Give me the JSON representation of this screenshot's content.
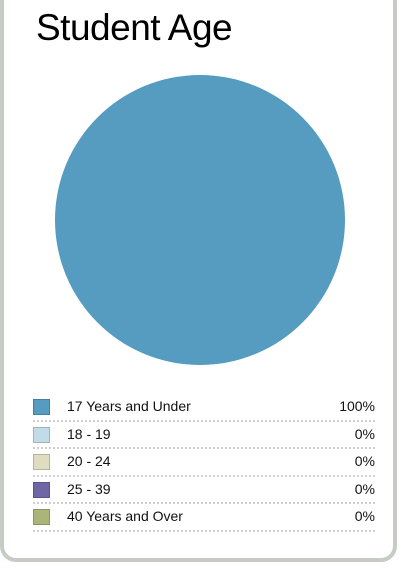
{
  "chart_data": {
    "type": "pie",
    "title": "Student Age",
    "legend_position": "bottom",
    "slices": [
      {
        "label": "17 Years and Under",
        "value": 100,
        "display": "100%",
        "color": "#559cc0"
      },
      {
        "label": "18 - 19",
        "value": 0,
        "display": "0%",
        "color": "#c2dbe8"
      },
      {
        "label": "20 - 24",
        "value": 0,
        "display": "0%",
        "color": "#e0dcc0"
      },
      {
        "label": "25 - 39",
        "value": 0,
        "display": "0%",
        "color": "#6f67a5"
      },
      {
        "label": "40 Years and Over",
        "value": 0,
        "display": "0%",
        "color": "#abb57a"
      }
    ]
  }
}
